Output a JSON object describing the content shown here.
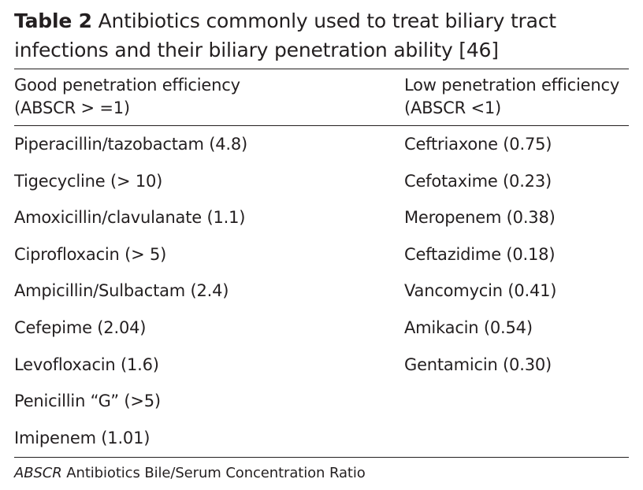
{
  "caption": {
    "label": "Table 2",
    "text": " Antibiotics commonly used to treat biliary tract infections and their biliary penetration ability [46]"
  },
  "headers": {
    "left": {
      "line1": "Good penetration efficiency",
      "line2": "(ABSCR > =1)"
    },
    "right": {
      "line1": "Low penetration efficiency",
      "line2": "(ABSCR <1)"
    }
  },
  "rows": [
    {
      "left": "Piperacillin/tazobactam (4.8)",
      "right": "Ceftriaxone (0.75)"
    },
    {
      "left": "Tigecycline (> 10)",
      "right": "Cefotaxime (0.23)"
    },
    {
      "left": "Amoxicillin/clavulanate (1.1)",
      "right": "Meropenem (0.38)"
    },
    {
      "left": "Ciprofloxacin (> 5)",
      "right": "Ceftazidime (0.18)"
    },
    {
      "left": "Ampicillin/Sulbactam (2.4)",
      "right": "Vancomycin (0.41)"
    },
    {
      "left": "Cefepime (2.04)",
      "right": "Amikacin (0.54)"
    },
    {
      "left": "Levofloxacin (1.6)",
      "right": "Gentamicin (0.30)"
    },
    {
      "left": "Penicillin “G” (>5)",
      "right": ""
    },
    {
      "left": "Imipenem (1.01)",
      "right": ""
    }
  ],
  "footnote": {
    "abbr": "ABSCR",
    "text": " Antibiotics Bile/Serum Concentration Ratio"
  }
}
